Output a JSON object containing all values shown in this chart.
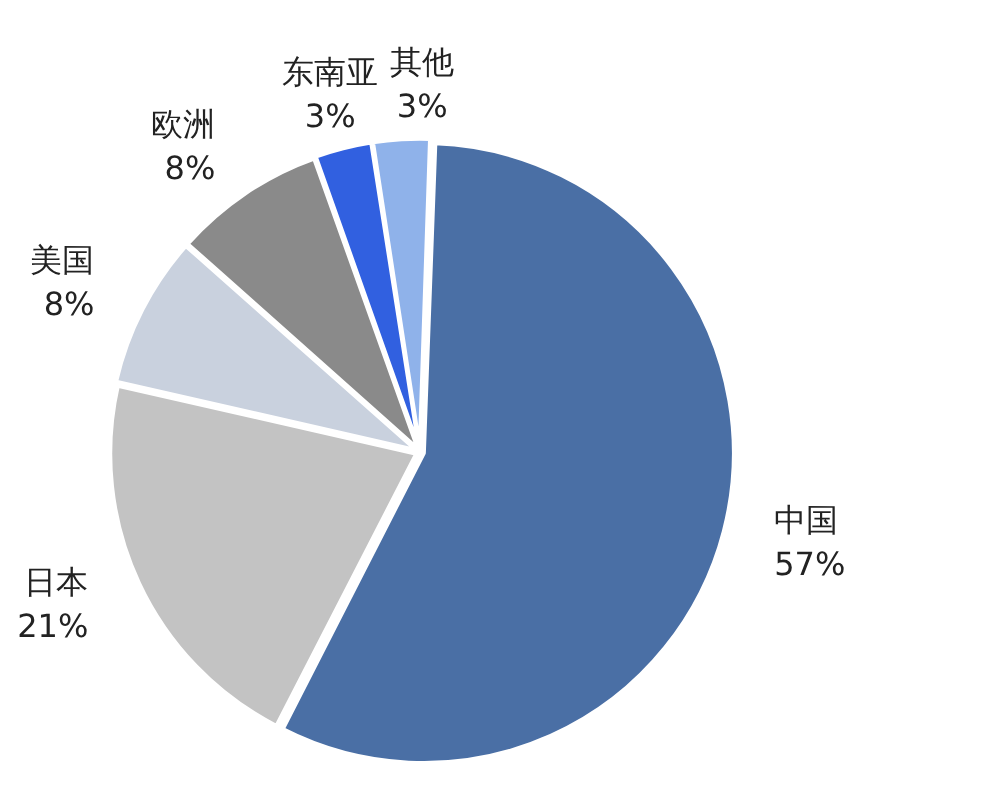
{
  "chart_data": {
    "type": "pie",
    "categories": [
      "中国",
      "日本",
      "美国",
      "欧洲",
      "东南亚",
      "其他"
    ],
    "values": [
      57,
      21,
      8,
      8,
      3,
      3
    ],
    "colors": [
      "#4a6fa5",
      "#c3c3c3",
      "#c9d1de",
      "#8a8a8a",
      "#3160e0",
      "#8fb2ea"
    ],
    "value_labels": [
      "57%",
      "21%",
      "8%",
      "8%",
      "3%",
      "3%"
    ],
    "legend": false
  }
}
